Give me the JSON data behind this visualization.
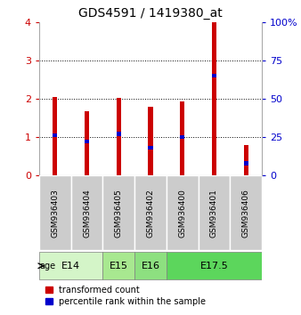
{
  "title": "GDS4591 / 1419380_at",
  "samples": [
    "GSM936403",
    "GSM936404",
    "GSM936405",
    "GSM936402",
    "GSM936400",
    "GSM936401",
    "GSM936406"
  ],
  "red_values": [
    2.05,
    1.68,
    2.03,
    1.8,
    1.92,
    4.0,
    0.8
  ],
  "blue_values": [
    1.05,
    0.88,
    1.08,
    0.72,
    1.0,
    2.6,
    0.32
  ],
  "age_groups": [
    {
      "label": "E14",
      "span": [
        0,
        2
      ],
      "color": "#d4f5c8"
    },
    {
      "label": "E15",
      "span": [
        2,
        3
      ],
      "color": "#a8e890"
    },
    {
      "label": "E16",
      "span": [
        3,
        4
      ],
      "color": "#8de080"
    },
    {
      "label": "E17.5",
      "span": [
        4,
        7
      ],
      "color": "#5cd65c"
    }
  ],
  "ylim_left": [
    0,
    4
  ],
  "ylim_right": [
    0,
    100
  ],
  "yticks_left": [
    0,
    1,
    2,
    3,
    4
  ],
  "yticks_right": [
    0,
    25,
    50,
    75,
    100
  ],
  "bar_width": 0.15,
  "red_color": "#cc0000",
  "blue_color": "#0000cc",
  "left_tick_color": "#cc0000",
  "right_tick_color": "#0000cc",
  "sample_box_color": "#cccccc",
  "age_label": "age",
  "legend_red": "transformed count",
  "legend_blue": "percentile rank within the sample"
}
